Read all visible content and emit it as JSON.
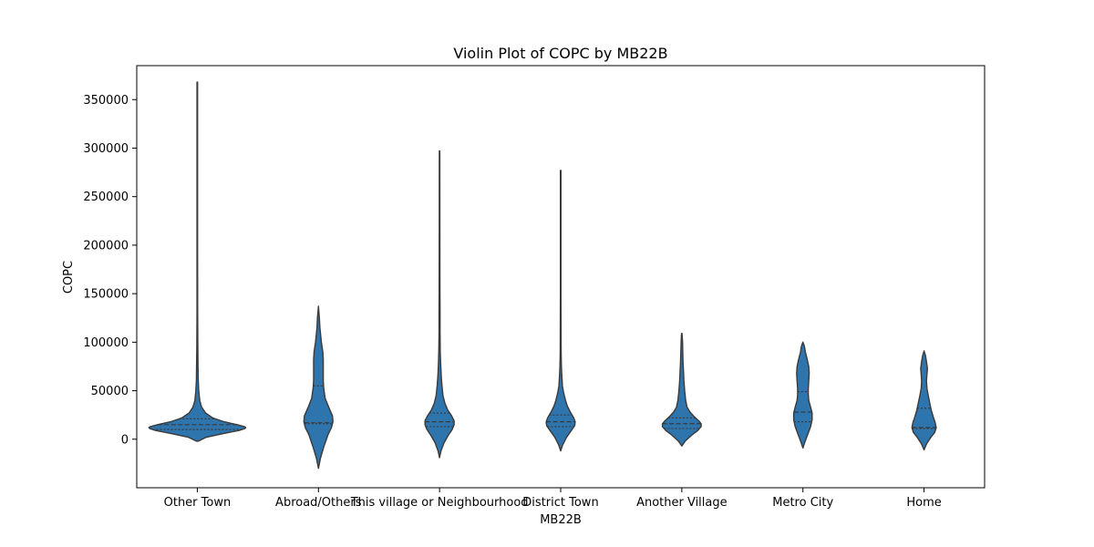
{
  "chart_data": {
    "type": "violin",
    "title": "Violin Plot of COPC by MB22B",
    "xlabel": "MB22B",
    "ylabel": "COPC",
    "ylim": [
      -50000,
      385000
    ],
    "yticks": [
      0,
      50000,
      100000,
      150000,
      200000,
      250000,
      300000,
      350000
    ],
    "ytick_labels": [
      "0",
      "50000",
      "100000",
      "150000",
      "200000",
      "250000",
      "300000",
      "350000"
    ],
    "categories": [
      "Other Town",
      "Abroad/Others",
      "This village or Neighbourhood",
      "District Town",
      "Another Village",
      "Metro City",
      "Home"
    ],
    "inner": "quartile",
    "grid": false,
    "colors": {
      "fill": "#2e74ad",
      "edge": "#3a3a3a",
      "quartile": "#3a3a3a"
    },
    "violins": [
      {
        "category": "Other Town",
        "min": -2000,
        "max": 368000,
        "quartiles": [
          10000,
          15000,
          21000
        ],
        "profile": [
          [
            -2000,
            0.02
          ],
          [
            2000,
            0.18
          ],
          [
            6000,
            0.55
          ],
          [
            9000,
            0.86
          ],
          [
            11000,
            0.98
          ],
          [
            12000,
            1.0
          ],
          [
            13000,
            0.97
          ],
          [
            15000,
            0.82
          ],
          [
            18000,
            0.55
          ],
          [
            22000,
            0.32
          ],
          [
            27000,
            0.17
          ],
          [
            33000,
            0.09
          ],
          [
            40000,
            0.05
          ],
          [
            50000,
            0.03
          ],
          [
            60000,
            0.02
          ],
          [
            75000,
            0.015
          ],
          [
            95000,
            0.01
          ],
          [
            130000,
            0.007
          ],
          [
            200000,
            0.006
          ],
          [
            300000,
            0.006
          ],
          [
            368000,
            0.006
          ]
        ]
      },
      {
        "category": "Abroad/Others",
        "min": -30000,
        "max": 137000,
        "quartiles": [
          16000,
          17000,
          55000
        ],
        "profile": [
          [
            -30000,
            0.0
          ],
          [
            -20000,
            0.04
          ],
          [
            -8000,
            0.11
          ],
          [
            5000,
            0.2
          ],
          [
            12000,
            0.27
          ],
          [
            18000,
            0.3
          ],
          [
            24000,
            0.29
          ],
          [
            32000,
            0.22
          ],
          [
            42000,
            0.14
          ],
          [
            52000,
            0.11
          ],
          [
            60000,
            0.1
          ],
          [
            70000,
            0.1
          ],
          [
            82000,
            0.1
          ],
          [
            90000,
            0.09
          ],
          [
            100000,
            0.06
          ],
          [
            115000,
            0.03
          ],
          [
            125000,
            0.02
          ],
          [
            137000,
            0.0
          ]
        ]
      },
      {
        "category": "This village or Neighbourhood",
        "min": -19000,
        "max": 297000,
        "quartiles": [
          13000,
          18000,
          27000
        ],
        "profile": [
          [
            -19000,
            0.0
          ],
          [
            -12000,
            0.03
          ],
          [
            -4000,
            0.09
          ],
          [
            4000,
            0.18
          ],
          [
            10000,
            0.26
          ],
          [
            15000,
            0.3
          ],
          [
            19000,
            0.3
          ],
          [
            24000,
            0.25
          ],
          [
            30000,
            0.17
          ],
          [
            37000,
            0.11
          ],
          [
            45000,
            0.07
          ],
          [
            55000,
            0.05
          ],
          [
            65000,
            0.035
          ],
          [
            75000,
            0.025
          ],
          [
            90000,
            0.015
          ],
          [
            110000,
            0.01
          ],
          [
            130000,
            0.01
          ],
          [
            150000,
            0.008
          ],
          [
            200000,
            0.006
          ],
          [
            297000,
            0.005
          ]
        ]
      },
      {
        "category": "District Town",
        "min": -12000,
        "max": 277000,
        "quartiles": [
          13000,
          18000,
          25000
        ],
        "profile": [
          [
            -12000,
            0.0
          ],
          [
            -6000,
            0.04
          ],
          [
            2000,
            0.12
          ],
          [
            9000,
            0.22
          ],
          [
            14000,
            0.29
          ],
          [
            18000,
            0.3
          ],
          [
            22000,
            0.27
          ],
          [
            28000,
            0.2
          ],
          [
            34000,
            0.14
          ],
          [
            40000,
            0.1
          ],
          [
            48000,
            0.06
          ],
          [
            55000,
            0.035
          ],
          [
            65000,
            0.025
          ],
          [
            75000,
            0.015
          ],
          [
            90000,
            0.01
          ],
          [
            150000,
            0.006
          ],
          [
            277000,
            0.006
          ]
        ]
      },
      {
        "category": "Another Village",
        "min": -7000,
        "max": 109000,
        "quartiles": [
          11000,
          16000,
          22000
        ],
        "profile": [
          [
            -7000,
            0.0
          ],
          [
            -2000,
            0.07
          ],
          [
            4000,
            0.2
          ],
          [
            9000,
            0.33
          ],
          [
            13000,
            0.4
          ],
          [
            16000,
            0.4
          ],
          [
            19000,
            0.35
          ],
          [
            23000,
            0.26
          ],
          [
            28000,
            0.17
          ],
          [
            33000,
            0.11
          ],
          [
            40000,
            0.08
          ],
          [
            50000,
            0.06
          ],
          [
            60000,
            0.045
          ],
          [
            70000,
            0.035
          ],
          [
            80000,
            0.025
          ],
          [
            90000,
            0.02
          ],
          [
            100000,
            0.015
          ],
          [
            109000,
            0.005
          ]
        ]
      },
      {
        "category": "Metro City",
        "min": -9000,
        "max": 100000,
        "quartiles": [
          18000,
          28000,
          49000
        ],
        "profile": [
          [
            -9000,
            0.0
          ],
          [
            -3000,
            0.04
          ],
          [
            5000,
            0.1
          ],
          [
            13000,
            0.16
          ],
          [
            20000,
            0.19
          ],
          [
            27000,
            0.19
          ],
          [
            33000,
            0.16
          ],
          [
            40000,
            0.12
          ],
          [
            46000,
            0.11
          ],
          [
            52000,
            0.11
          ],
          [
            60000,
            0.12
          ],
          [
            68000,
            0.13
          ],
          [
            75000,
            0.12
          ],
          [
            82000,
            0.09
          ],
          [
            90000,
            0.05
          ],
          [
            96000,
            0.03
          ],
          [
            100000,
            0.0
          ]
        ]
      },
      {
        "category": "Home",
        "min": -11000,
        "max": 91000,
        "quartiles": [
          11000,
          12000,
          32000
        ],
        "profile": [
          [
            -11000,
            0.0
          ],
          [
            -5000,
            0.05
          ],
          [
            2000,
            0.14
          ],
          [
            7000,
            0.22
          ],
          [
            12000,
            0.25
          ],
          [
            17000,
            0.23
          ],
          [
            23000,
            0.19
          ],
          [
            30000,
            0.15
          ],
          [
            37000,
            0.12
          ],
          [
            44000,
            0.09
          ],
          [
            52000,
            0.06
          ],
          [
            60000,
            0.05
          ],
          [
            67000,
            0.06
          ],
          [
            73000,
            0.07
          ],
          [
            80000,
            0.05
          ],
          [
            86000,
            0.03
          ],
          [
            91000,
            0.0
          ]
        ]
      }
    ]
  }
}
